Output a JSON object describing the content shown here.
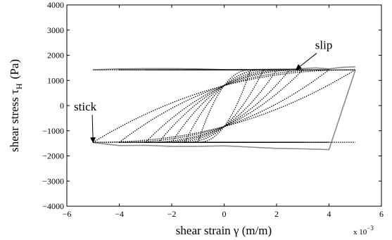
{
  "chart_data": {
    "type": "line",
    "xlabel": "shear strain γ (m/m)",
    "ylabel_main": "shear stress τ",
    "ylabel_sub": "H",
    "ylabel_unit": "(Pa)",
    "x_multiplier_base": "x 10",
    "x_multiplier_exp": "−3",
    "xlim": [
      -6,
      6
    ],
    "ylim": [
      -4000,
      4000
    ],
    "xticks": [
      -6,
      -4,
      -2,
      0,
      2,
      4,
      6
    ],
    "xtick_labels": [
      "−6",
      "−4",
      "−2",
      "0",
      "2",
      "4",
      "6"
    ],
    "yticks": [
      -4000,
      -3000,
      -2000,
      -1000,
      0,
      1000,
      2000,
      3000,
      4000
    ],
    "ytick_labels": [
      "−4000",
      "−3000",
      "−2000",
      "−1000",
      "0",
      "1000",
      "2000",
      "3000",
      "4000"
    ],
    "grid": false,
    "loop_amplitudes": [
      1,
      1.5,
      2,
      2.5,
      3,
      4,
      5
    ],
    "slip_stress_upper": 1420,
    "slip_stress_lower": -1460,
    "dotted_color": "#000000",
    "measured_color": "#8c8c8c",
    "measured_upper": [
      [
        -5,
        1420
      ],
      [
        -4,
        1460
      ],
      [
        -3,
        1470
      ],
      [
        -2,
        1470
      ],
      [
        -1,
        1460
      ],
      [
        0,
        1430
      ],
      [
        1,
        1430
      ],
      [
        2,
        1450
      ],
      [
        2.5,
        1450
      ],
      [
        3,
        1470
      ],
      [
        3.5,
        1500
      ],
      [
        4,
        1460
      ],
      [
        4.5,
        1520
      ],
      [
        5,
        1540
      ]
    ],
    "measured_lower": [
      [
        5,
        1400
      ],
      [
        4,
        -1750
      ],
      [
        3,
        -1720
      ],
      [
        2,
        -1700
      ],
      [
        1,
        -1650
      ],
      [
        0,
        -1600
      ],
      [
        -1,
        -1620
      ],
      [
        -2,
        -1620
      ],
      [
        -3,
        -1580
      ],
      [
        -4,
        -1590
      ],
      [
        -5,
        -1470
      ]
    ],
    "annotations": [
      {
        "text": "slip",
        "point": [
          2.75,
          1440
        ],
        "text_at": [
          3.8,
          2250
        ]
      },
      {
        "text": "stick",
        "point": [
          -5,
          -1460
        ],
        "text_at": [
          -5.3,
          -200
        ]
      }
    ]
  }
}
